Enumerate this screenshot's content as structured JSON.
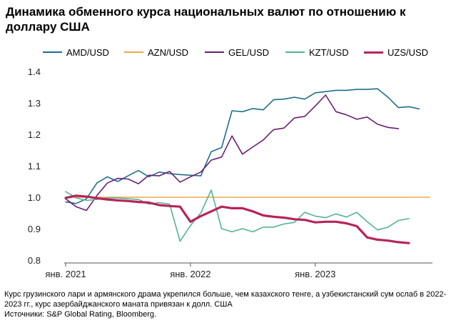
{
  "title": "Динамика обменного курса национальных валют по отношению к доллару США",
  "note": "Курс грузинского лари и армянского драма укрепился больше, чем казахского тенге, а узбекистанский сум ослаб в 2022-2023 гг., курс азербайджанского маната привязан к долл. США",
  "source": "Источники: S&P Global Rating, Bloomberg.",
  "chart_data": {
    "type": "line",
    "title": "Динамика обменного курса национальных валют по отношению к доллару США",
    "xlabel": "",
    "ylabel": "",
    "ylim": [
      0.8,
      1.4
    ],
    "yticks": [
      0.8,
      0.9,
      1.0,
      1.1,
      1.2,
      1.3,
      1.4
    ],
    "ytick_labels": [
      "0.8",
      "0.9",
      "1.0",
      "1.1",
      "1.2",
      "1.3",
      "1.4"
    ],
    "x": [
      "2021-01",
      "2021-02",
      "2021-03",
      "2021-04",
      "2021-05",
      "2021-06",
      "2021-07",
      "2021-08",
      "2021-09",
      "2021-10",
      "2021-11",
      "2021-12",
      "2022-01",
      "2022-02",
      "2022-03",
      "2022-04",
      "2022-05",
      "2022-06",
      "2022-07",
      "2022-08",
      "2022-09",
      "2022-10",
      "2022-11",
      "2022-12",
      "2023-01",
      "2023-02",
      "2023-03",
      "2023-04",
      "2023-05",
      "2023-06",
      "2023-07",
      "2023-08",
      "2023-09",
      "2023-10",
      "2023-11",
      "2023-12"
    ],
    "xticks": [
      {
        "x": "2021-01",
        "label": "янв. 2021"
      },
      {
        "x": "2022-01",
        "label": "янв. 2022"
      },
      {
        "x": "2023-01",
        "label": "янв. 2023"
      }
    ],
    "grid": false,
    "legend": "top",
    "series": [
      {
        "name": "AMD/USD",
        "color": "#1f6e8c",
        "width": 1.6,
        "values": [
          0.985,
          0.98,
          0.995,
          1.045,
          1.065,
          1.05,
          1.068,
          1.085,
          1.065,
          1.08,
          1.075,
          1.072,
          1.07,
          1.068,
          1.145,
          1.158,
          1.275,
          1.272,
          1.282,
          1.278,
          1.31,
          1.312,
          1.318,
          1.312,
          1.332,
          1.336,
          1.34,
          1.34,
          1.343,
          1.343,
          1.345,
          1.318,
          1.285,
          1.288,
          1.281,
          null
        ]
      },
      {
        "name": "AZN/USD",
        "color": "#f0a848",
        "width": 1.4,
        "values": [
          1.0,
          1.0,
          1.0,
          1.0,
          1.0,
          1.0,
          1.0,
          1.0,
          1.0,
          1.0,
          1.0,
          1.0,
          1.0,
          1.0,
          1.0,
          1.0,
          1.0,
          1.0,
          1.0,
          1.0,
          1.0,
          1.0,
          1.0,
          1.0,
          1.0,
          1.0,
          1.0,
          1.0,
          1.0,
          1.0,
          1.0,
          1.0,
          1.0,
          1.0,
          1.0,
          1.0
        ]
      },
      {
        "name": "GEL/USD",
        "color": "#6a1f73",
        "width": 1.6,
        "values": [
          0.995,
          0.97,
          0.958,
          1.005,
          1.045,
          1.06,
          1.058,
          1.043,
          1.07,
          1.068,
          1.082,
          1.048,
          1.065,
          1.08,
          1.118,
          1.128,
          1.195,
          1.137,
          1.16,
          1.182,
          1.215,
          1.22,
          1.252,
          1.257,
          1.29,
          1.325,
          1.272,
          1.262,
          1.248,
          1.255,
          1.232,
          1.222,
          1.218,
          null,
          null,
          null
        ]
      },
      {
        "name": "KZT/USD",
        "color": "#55b395",
        "width": 1.6,
        "values": [
          1.018,
          0.998,
          0.99,
          0.993,
          0.998,
          0.998,
          0.995,
          0.993,
          0.978,
          0.983,
          0.978,
          0.86,
          0.91,
          0.95,
          1.023,
          0.9,
          0.89,
          0.9,
          0.89,
          0.905,
          0.905,
          0.915,
          0.92,
          0.952,
          0.94,
          0.935,
          0.947,
          0.937,
          0.952,
          0.922,
          0.896,
          0.905,
          0.926,
          0.932,
          null,
          null
        ]
      },
      {
        "name": "UZS/USD",
        "color": "#b8235a",
        "width": 3.2,
        "values": [
          0.998,
          1.005,
          1.002,
          0.997,
          0.993,
          0.99,
          0.988,
          0.985,
          0.983,
          0.975,
          0.972,
          0.97,
          0.922,
          0.94,
          0.955,
          0.97,
          0.965,
          0.965,
          0.955,
          0.942,
          0.938,
          0.935,
          0.93,
          0.928,
          0.92,
          0.922,
          0.922,
          0.917,
          0.908,
          0.872,
          0.865,
          0.862,
          0.857,
          0.854,
          null,
          null
        ]
      }
    ]
  }
}
